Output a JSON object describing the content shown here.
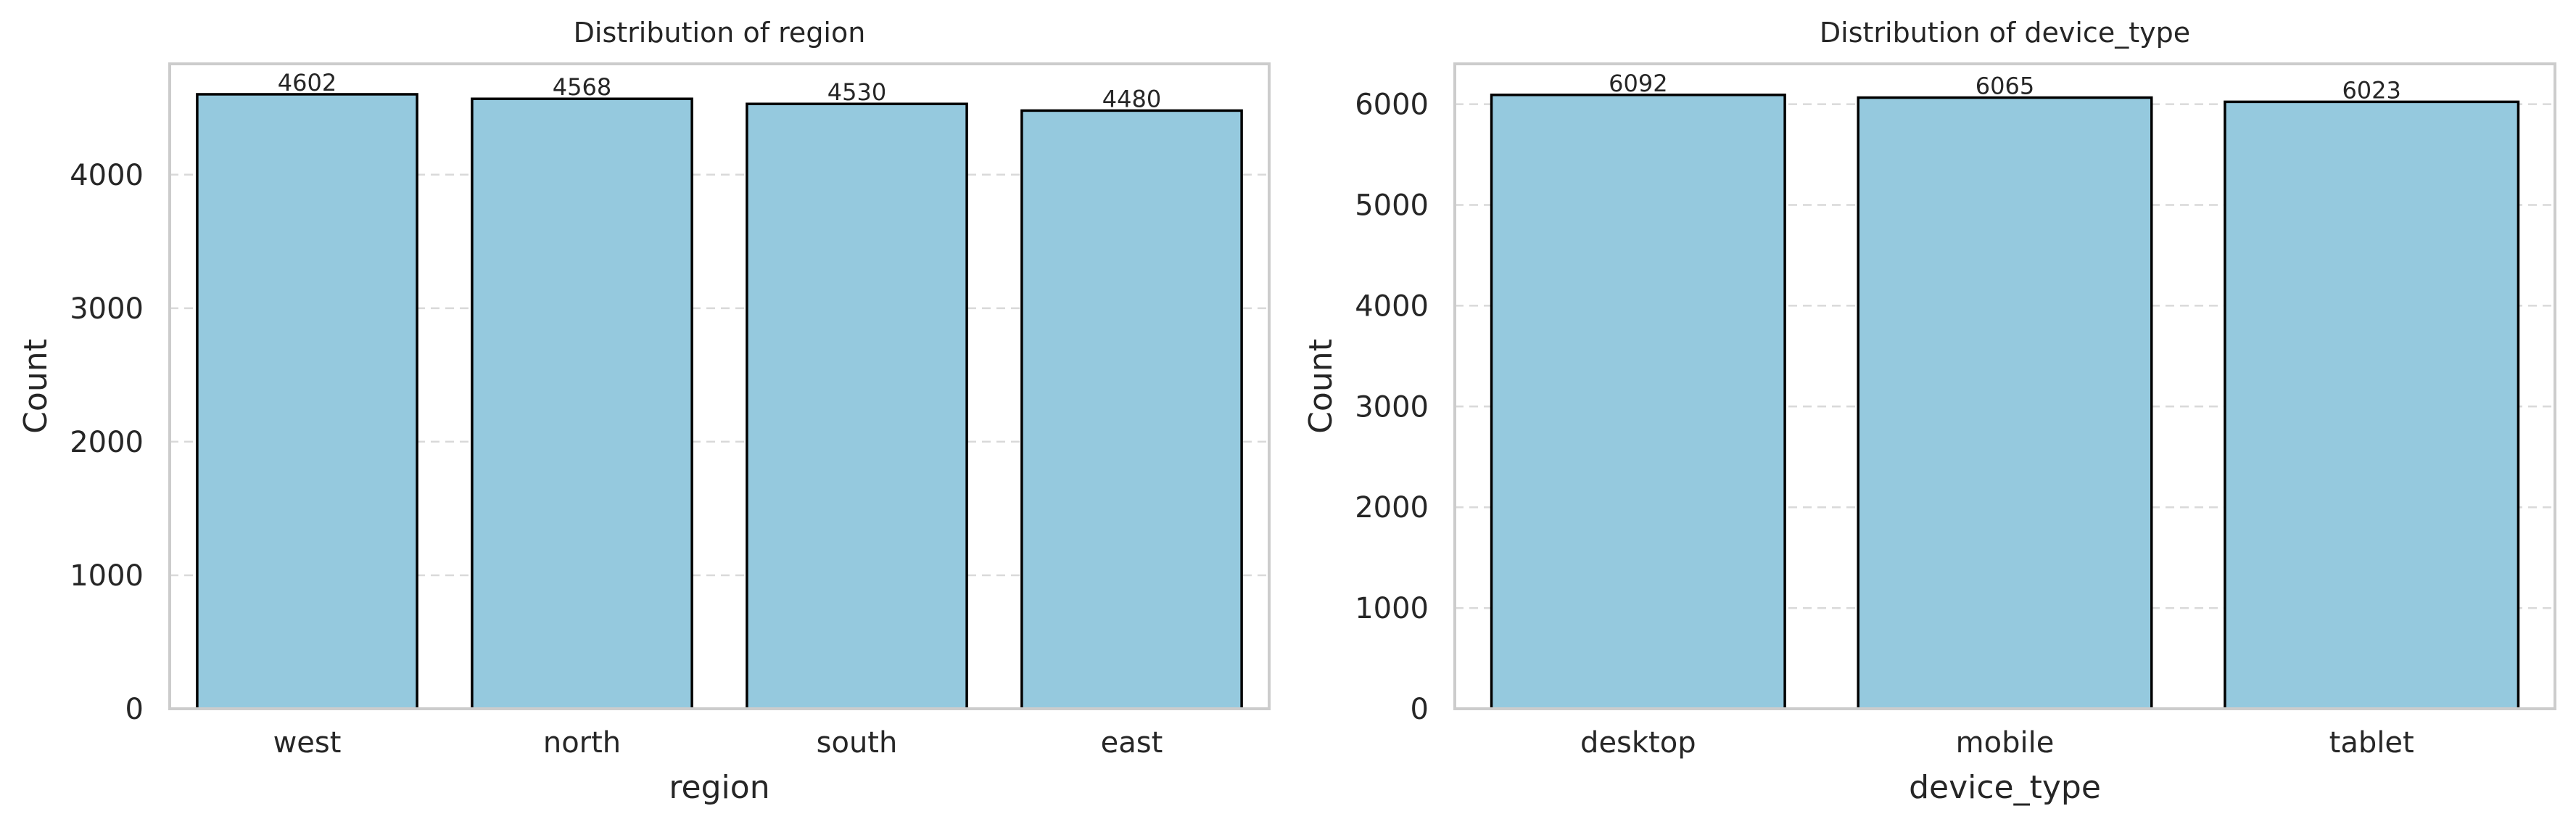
{
  "chart_data": [
    {
      "type": "bar",
      "title": "Distribution of region",
      "xlabel": "region",
      "ylabel": "Count",
      "categories": [
        "west",
        "north",
        "south",
        "east"
      ],
      "values": [
        4602,
        4568,
        4530,
        4480
      ],
      "data_labels": [
        "4602",
        "4568",
        "4530",
        "4480"
      ],
      "ylim": [
        0,
        4830
      ],
      "yticks": [
        0,
        1000,
        2000,
        3000,
        4000
      ],
      "grid": "y-dashed",
      "bar_color": "#95c9de",
      "edge_color": "#000000"
    },
    {
      "type": "bar",
      "title": "Distribution of device_type",
      "xlabel": "device_type",
      "ylabel": "Count",
      "categories": [
        "desktop",
        "mobile",
        "tablet"
      ],
      "values": [
        6092,
        6065,
        6023
      ],
      "data_labels": [
        "6092",
        "6065",
        "6023"
      ],
      "ylim": [
        0,
        6400
      ],
      "yticks": [
        0,
        1000,
        2000,
        3000,
        4000,
        5000,
        6000
      ],
      "grid": "y-dashed",
      "bar_color": "#95c9de",
      "edge_color": "#000000"
    }
  ]
}
